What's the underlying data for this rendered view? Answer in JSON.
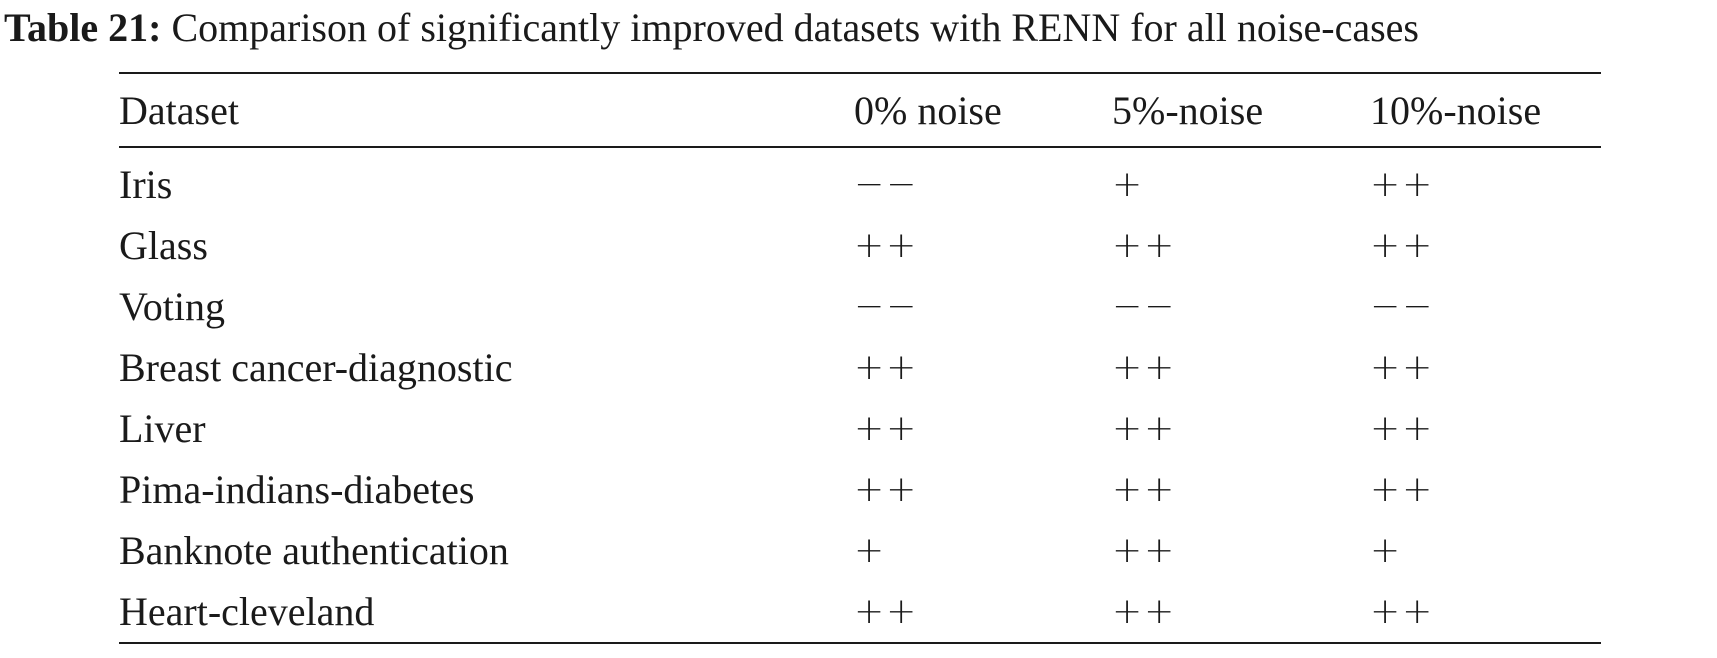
{
  "caption": {
    "label": "Table 21:",
    "text": "Comparison of significantly improved datasets with RENN for all noise-cases"
  },
  "table": {
    "headers": [
      "Dataset",
      "0% noise",
      "5%-noise",
      "10%-noise"
    ],
    "rows": [
      {
        "dataset": "Iris",
        "values": [
          "−−",
          "+",
          "++"
        ]
      },
      {
        "dataset": "Glass",
        "values": [
          "++",
          "++",
          "++"
        ]
      },
      {
        "dataset": "Voting",
        "values": [
          "−−",
          "−−",
          "−−"
        ]
      },
      {
        "dataset": "Breast cancer-diagnostic",
        "values": [
          "++",
          "++",
          "++"
        ]
      },
      {
        "dataset": "Liver",
        "values": [
          "++",
          "++",
          "++"
        ]
      },
      {
        "dataset": "Pima-indians-diabetes",
        "values": [
          "++",
          "++",
          "++"
        ]
      },
      {
        "dataset": "Banknote authentication",
        "values": [
          "+",
          "++",
          "+"
        ]
      },
      {
        "dataset": "Heart-cleveland",
        "values": [
          "++",
          "++",
          "++"
        ]
      }
    ]
  }
}
